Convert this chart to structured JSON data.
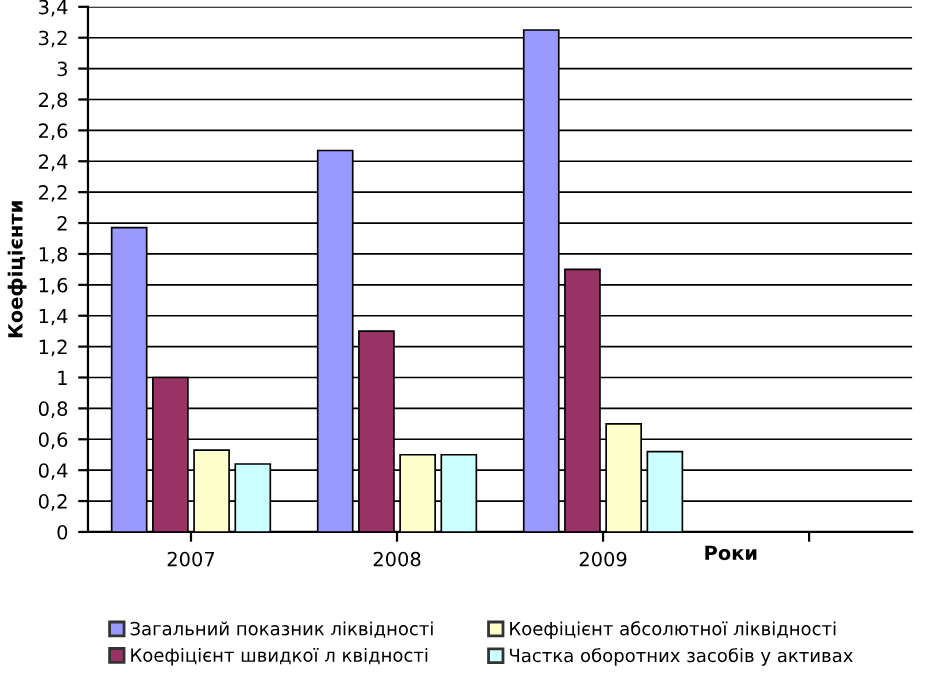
{
  "chart_data": {
    "type": "bar",
    "ylabel": "Коефіцієнти",
    "xlabel": "Роки",
    "categories": [
      "2007",
      "2008",
      "2009",
      null
    ],
    "series": [
      {
        "name": "Загальний показник ліквідності",
        "color": "#9999ff",
        "values": [
          1.97,
          2.47,
          3.25,
          null
        ]
      },
      {
        "name": "Коефіцієнт швидкої л квідності",
        "color": "#993366",
        "values": [
          1.0,
          1.3,
          1.7,
          null
        ]
      },
      {
        "name": "Коефіцієнт абсолютної ліквідності",
        "color": "#ffffcc",
        "values": [
          0.53,
          0.5,
          0.7,
          null
        ]
      },
      {
        "name": "Частка оборотних засобів у активах",
        "color": "#ccffff",
        "values": [
          0.44,
          0.5,
          0.52,
          null
        ]
      }
    ],
    "ylim": [
      0,
      3.4
    ],
    "yticks": [
      0,
      {
        "value": 0.2,
        "label": "0,2"
      },
      {
        "value": 0.4,
        "label": "0,4"
      },
      {
        "value": 0.6,
        "label": "0,6"
      },
      {
        "value": 0.8,
        "label": "0,8"
      },
      1,
      {
        "value": 1.2,
        "label": "1,2"
      },
      {
        "value": 1.4,
        "label": "1,4"
      },
      {
        "value": 1.6,
        "label": "1,6"
      },
      {
        "value": 1.8,
        "label": "1,8"
      },
      2,
      {
        "value": 2.2,
        "label": "2,2"
      },
      {
        "value": 2.4,
        "label": "2,4"
      },
      {
        "value": 2.6,
        "label": "2,6"
      },
      {
        "value": 2.8,
        "label": "2,8"
      },
      3,
      {
        "value": 3.2,
        "label": "3,2"
      },
      {
        "value": 3.4,
        "label": "3,4"
      }
    ],
    "grid": "y",
    "legend": "bottom"
  }
}
